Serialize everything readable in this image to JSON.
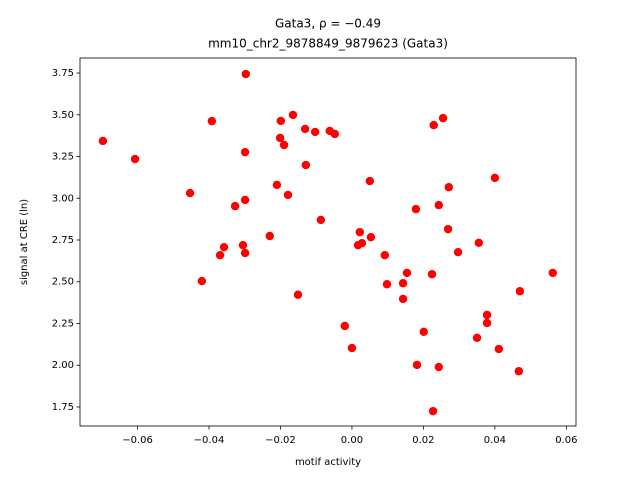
{
  "chart_data": {
    "type": "scatter",
    "title": "Gata3, ρ = −0.49",
    "subtitle": "mm10_chr2_9878849_9879623 (Gata3)",
    "xlabel": "motif activity",
    "ylabel": "signal at CRE (ln)",
    "color": "#ff0000",
    "x": [
      -0.0697,
      -0.0607,
      -0.0453,
      -0.042,
      -0.0392,
      -0.0369,
      -0.0358,
      -0.0327,
      -0.0305,
      -0.0299,
      -0.0297,
      -0.0299,
      -0.0299,
      -0.023,
      -0.021,
      -0.0201,
      -0.0199,
      -0.019,
      -0.0179,
      -0.0165,
      -0.0151,
      -0.0131,
      -0.0129,
      -0.0103,
      -0.0087,
      -0.0062,
      -0.0048,
      -0.002,
      0.0,
      0.0017,
      0.0022,
      0.0028,
      0.0053,
      0.005,
      0.0092,
      0.0098,
      0.0143,
      0.0143,
      0.0154,
      0.0179,
      0.0182,
      0.0201,
      0.0224,
      0.0227,
      0.0229,
      0.0243,
      0.0243,
      0.0255,
      0.0269,
      0.0271,
      0.0297,
      0.035,
      0.0355,
      0.0378,
      0.0378,
      0.04,
      0.0411,
      0.047,
      0.0467,
      0.0562
    ],
    "values": [
      3.343,
      3.235,
      3.031,
      2.504,
      3.462,
      2.659,
      2.707,
      2.953,
      2.719,
      3.276,
      3.744,
      2.99,
      2.672,
      2.774,
      3.08,
      3.361,
      3.463,
      3.319,
      3.02,
      3.499,
      2.422,
      3.415,
      3.199,
      3.397,
      2.87,
      3.403,
      3.385,
      2.235,
      2.103,
      2.719,
      2.797,
      2.731,
      2.767,
      3.103,
      2.659,
      2.485,
      2.491,
      2.397,
      2.553,
      2.935,
      2.002,
      2.2,
      2.545,
      1.725,
      3.438,
      2.959,
      1.989,
      3.48,
      2.815,
      3.066,
      2.677,
      2.164,
      2.733,
      2.253,
      2.301,
      3.122,
      2.097,
      2.443,
      1.964,
      2.553
    ],
    "xlim": [
      -0.0761,
      0.0627
    ],
    "ylim": [
      1.636,
      3.84
    ],
    "xticks": [
      {
        "value": -0.06,
        "label": "−0.06"
      },
      {
        "value": -0.04,
        "label": "−0.04"
      },
      {
        "value": -0.02,
        "label": "−0.02"
      },
      {
        "value": 0,
        "label": "0.00"
      },
      {
        "value": 0.02,
        "label": "0.02"
      },
      {
        "value": 0.04,
        "label": "0.04"
      },
      {
        "value": 0.06,
        "label": "0.06"
      }
    ],
    "yticks": [
      1.75,
      {
        "value": 2,
        "label": "2.00"
      },
      2.25,
      {
        "value": 2.5,
        "label": "2.50"
      },
      2.75,
      {
        "value": 3,
        "label": "3.00"
      },
      3.25,
      {
        "value": 3.5,
        "label": "3.50"
      },
      3.75
    ]
  }
}
